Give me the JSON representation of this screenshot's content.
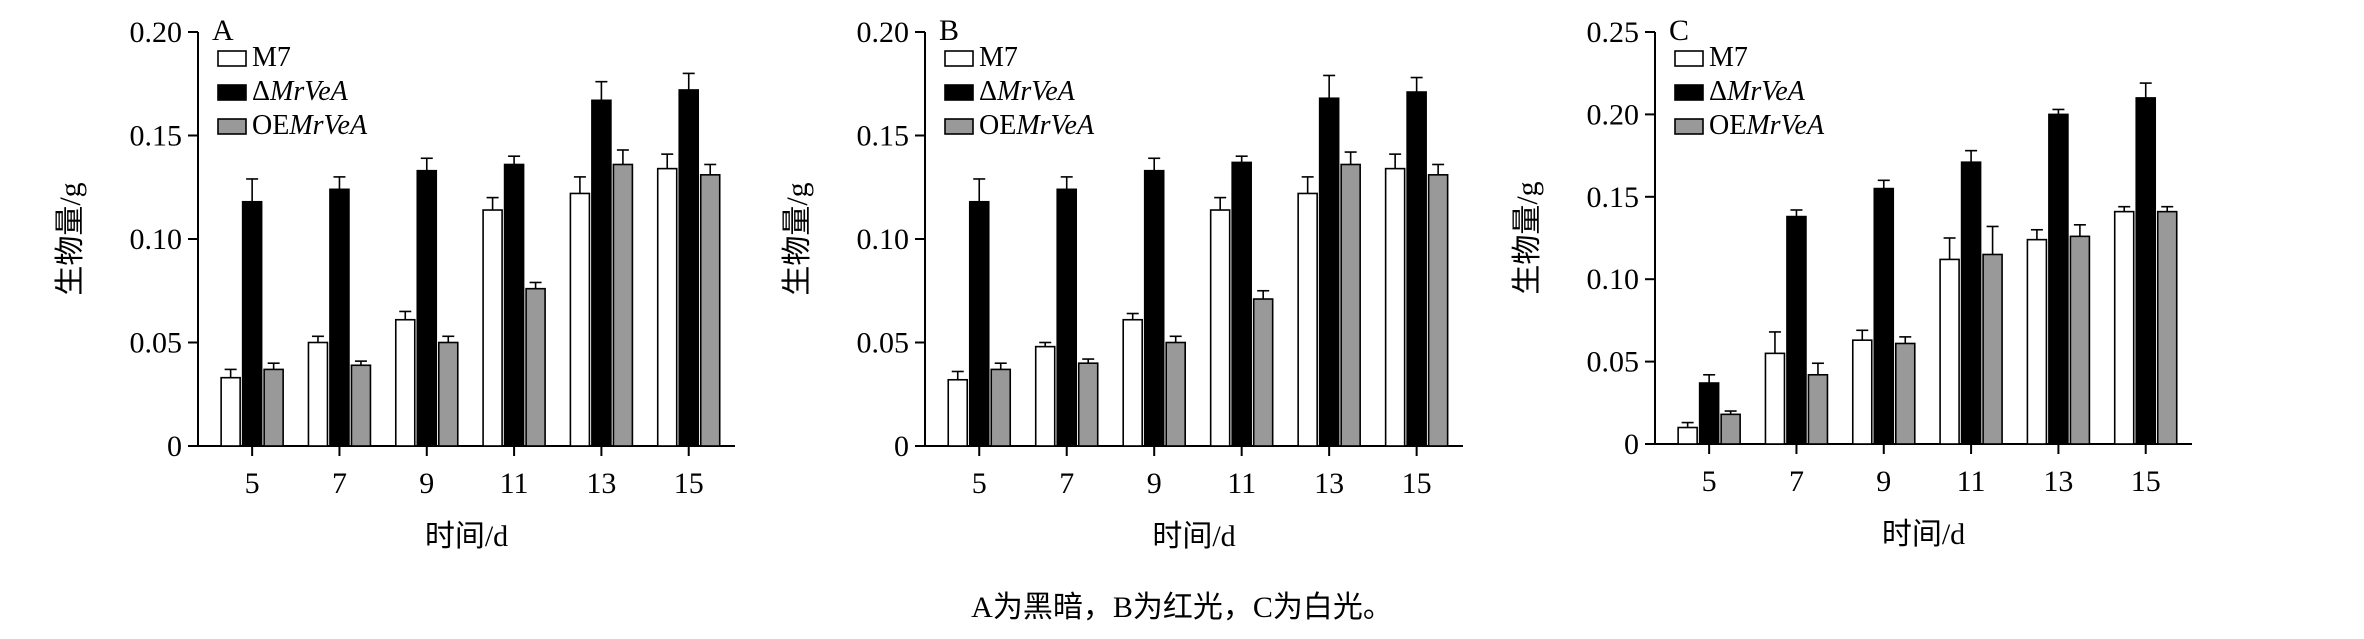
{
  "caption": "A为黑暗，B为红光，C为白光。",
  "chart_data": [
    {
      "type": "bar",
      "panel_label": "A",
      "xlabel": "时间/d",
      "ylabel": "生物量/g",
      "categories": [
        "5",
        "7",
        "9",
        "11",
        "13",
        "15"
      ],
      "ylim": [
        0,
        0.2
      ],
      "yticks": [
        0,
        0.05,
        0.1,
        0.15,
        0.2
      ],
      "ytick_labels": [
        "0",
        "0.05",
        "0.10",
        "0.15",
        "0.20"
      ],
      "legend": "top-left",
      "series": [
        {
          "name": "M7",
          "color": "#ffffff",
          "values": [
            0.033,
            0.05,
            0.061,
            0.114,
            0.122,
            0.134
          ],
          "errors": [
            0.004,
            0.003,
            0.004,
            0.006,
            0.008,
            0.007
          ]
        },
        {
          "name": "ΔMrVeA",
          "color": "#000000",
          "values": [
            0.118,
            0.124,
            0.133,
            0.136,
            0.167,
            0.172
          ],
          "errors": [
            0.011,
            0.006,
            0.006,
            0.004,
            0.009,
            0.008
          ]
        },
        {
          "name": "OEMrVeA",
          "color": "#999999",
          "values": [
            0.037,
            0.039,
            0.05,
            0.076,
            0.136,
            0.131
          ],
          "errors": [
            0.003,
            0.002,
            0.003,
            0.003,
            0.007,
            0.005
          ]
        }
      ]
    },
    {
      "type": "bar",
      "panel_label": "B",
      "xlabel": "时间/d",
      "ylabel": "生物量/g",
      "categories": [
        "5",
        "7",
        "9",
        "11",
        "13",
        "15"
      ],
      "ylim": [
        0,
        0.2
      ],
      "yticks": [
        0,
        0.05,
        0.1,
        0.15,
        0.2
      ],
      "ytick_labels": [
        "0",
        "0.05",
        "0.10",
        "0.15",
        "0.20"
      ],
      "legend": "top-left",
      "series": [
        {
          "name": "M7",
          "color": "#ffffff",
          "values": [
            0.032,
            0.048,
            0.061,
            0.114,
            0.122,
            0.134
          ],
          "errors": [
            0.004,
            0.002,
            0.003,
            0.006,
            0.008,
            0.007
          ]
        },
        {
          "name": "ΔMrVeA",
          "color": "#000000",
          "values": [
            0.118,
            0.124,
            0.133,
            0.137,
            0.168,
            0.171
          ],
          "errors": [
            0.011,
            0.006,
            0.006,
            0.003,
            0.011,
            0.007
          ]
        },
        {
          "name": "OEMrVeA",
          "color": "#999999",
          "values": [
            0.037,
            0.04,
            0.05,
            0.071,
            0.136,
            0.131
          ],
          "errors": [
            0.003,
            0.002,
            0.003,
            0.004,
            0.006,
            0.005
          ]
        }
      ]
    },
    {
      "type": "bar",
      "panel_label": "C",
      "xlabel": "时间/d",
      "ylabel": "生物量/g",
      "categories": [
        "5",
        "7",
        "9",
        "11",
        "13",
        "15"
      ],
      "ylim": [
        0,
        0.25
      ],
      "yticks": [
        0,
        0.05,
        0.1,
        0.15,
        0.2,
        0.25
      ],
      "ytick_labels": [
        "0",
        "0.05",
        "0.10",
        "0.15",
        "0.20",
        "0.25"
      ],
      "legend": "top-left",
      "series": [
        {
          "name": "M7",
          "color": "#ffffff",
          "values": [
            0.01,
            0.055,
            0.063,
            0.112,
            0.124,
            0.141
          ],
          "errors": [
            0.003,
            0.013,
            0.006,
            0.013,
            0.006,
            0.003
          ]
        },
        {
          "name": "ΔMrVeA",
          "color": "#000000",
          "values": [
            0.037,
            0.138,
            0.155,
            0.171,
            0.2,
            0.21
          ],
          "errors": [
            0.005,
            0.004,
            0.005,
            0.007,
            0.003,
            0.009
          ]
        },
        {
          "name": "OEMrVeA",
          "color": "#999999",
          "values": [
            0.018,
            0.042,
            0.061,
            0.115,
            0.126,
            0.141
          ],
          "errors": [
            0.002,
            0.007,
            0.004,
            0.017,
            0.007,
            0.003
          ]
        }
      ]
    }
  ]
}
